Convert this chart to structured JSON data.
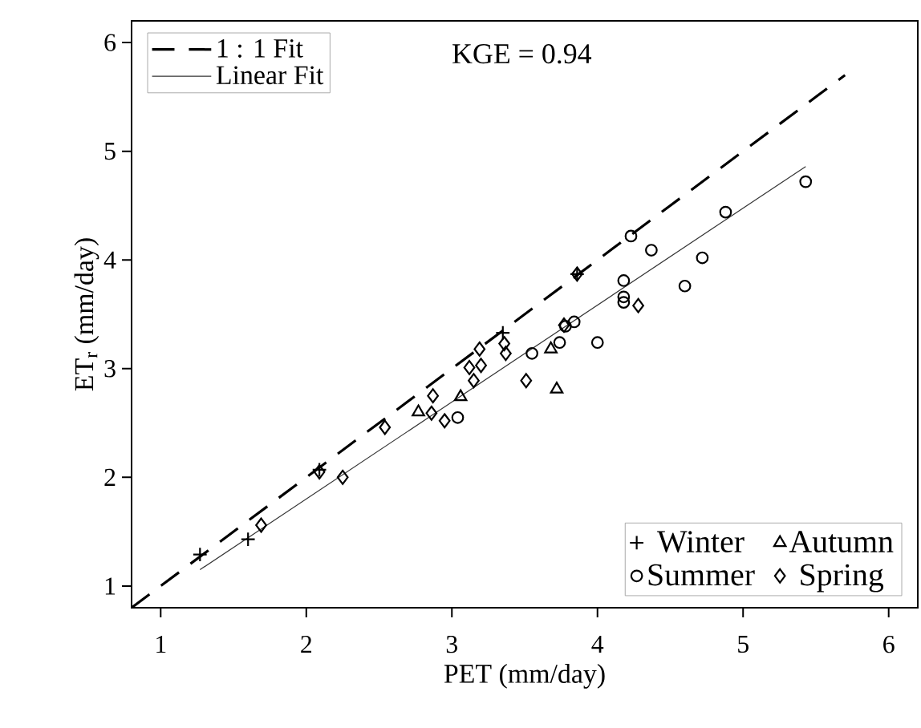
{
  "chart_data": {
    "type": "scatter",
    "xlabel": "PET (mm/day)",
    "ylabel": "ET$_{r}$ (mm/day)",
    "xlim": [
      0.8,
      6.2
    ],
    "ylim": [
      0.8,
      6.2
    ],
    "xticks": [
      1,
      2,
      3,
      4,
      5,
      6
    ],
    "yticks": [
      1,
      2,
      3,
      4,
      5,
      6
    ],
    "grid": false,
    "legend": "bottom right",
    "annotations": [
      "KGE = 0.94"
    ],
    "series": [
      {
        "name": "1 : 1 Fit",
        "type": "line",
        "line_style": "dashed",
        "marker": "none",
        "color": "#000000",
        "x": [
          0.8,
          5.7
        ],
        "values": [
          0.8,
          5.7
        ]
      },
      {
        "name": "Linear Fit",
        "type": "line",
        "line_style": "solid",
        "marker": "none",
        "color": "#333333",
        "x": [
          1.27,
          5.43
        ],
        "values": [
          1.15,
          4.86
        ]
      },
      {
        "name": "Winter",
        "marker": "cross",
        "color": "#000000",
        "x": [
          1.27,
          1.6,
          2.09,
          3.35,
          3.86
        ],
        "values": [
          1.29,
          1.43,
          2.07,
          3.33,
          3.87
        ]
      },
      {
        "name": "Autumn",
        "marker": "triangle",
        "color": "#000000",
        "x": [
          2.77,
          3.06,
          3.68,
          3.72
        ],
        "values": [
          2.6,
          2.74,
          3.18,
          2.81
        ]
      },
      {
        "name": "Summer",
        "marker": "circle",
        "color": "#000000",
        "x": [
          5.43,
          4.88,
          4.23,
          4.37,
          4.72,
          4.18,
          4.6,
          4.18,
          4.18,
          3.84,
          3.78,
          4.0,
          3.55,
          3.74,
          3.04
        ],
        "values": [
          4.72,
          4.44,
          4.22,
          4.09,
          4.02,
          3.81,
          3.76,
          3.66,
          3.61,
          3.43,
          3.39,
          3.24,
          3.14,
          3.24,
          2.55
        ]
      },
      {
        "name": "Spring",
        "marker": "diamond",
        "color": "#000000",
        "x": [
          1.69,
          2.09,
          2.25,
          2.54,
          2.87,
          2.86,
          2.95,
          3.12,
          3.19,
          3.2,
          3.15,
          3.37,
          3.36,
          3.51,
          4.28,
          3.86,
          3.77
        ],
        "values": [
          1.56,
          2.05,
          2.0,
          2.46,
          2.75,
          2.59,
          2.52,
          3.01,
          3.18,
          3.03,
          2.89,
          3.14,
          3.23,
          2.89,
          3.58,
          3.87,
          3.4
        ]
      }
    ]
  }
}
